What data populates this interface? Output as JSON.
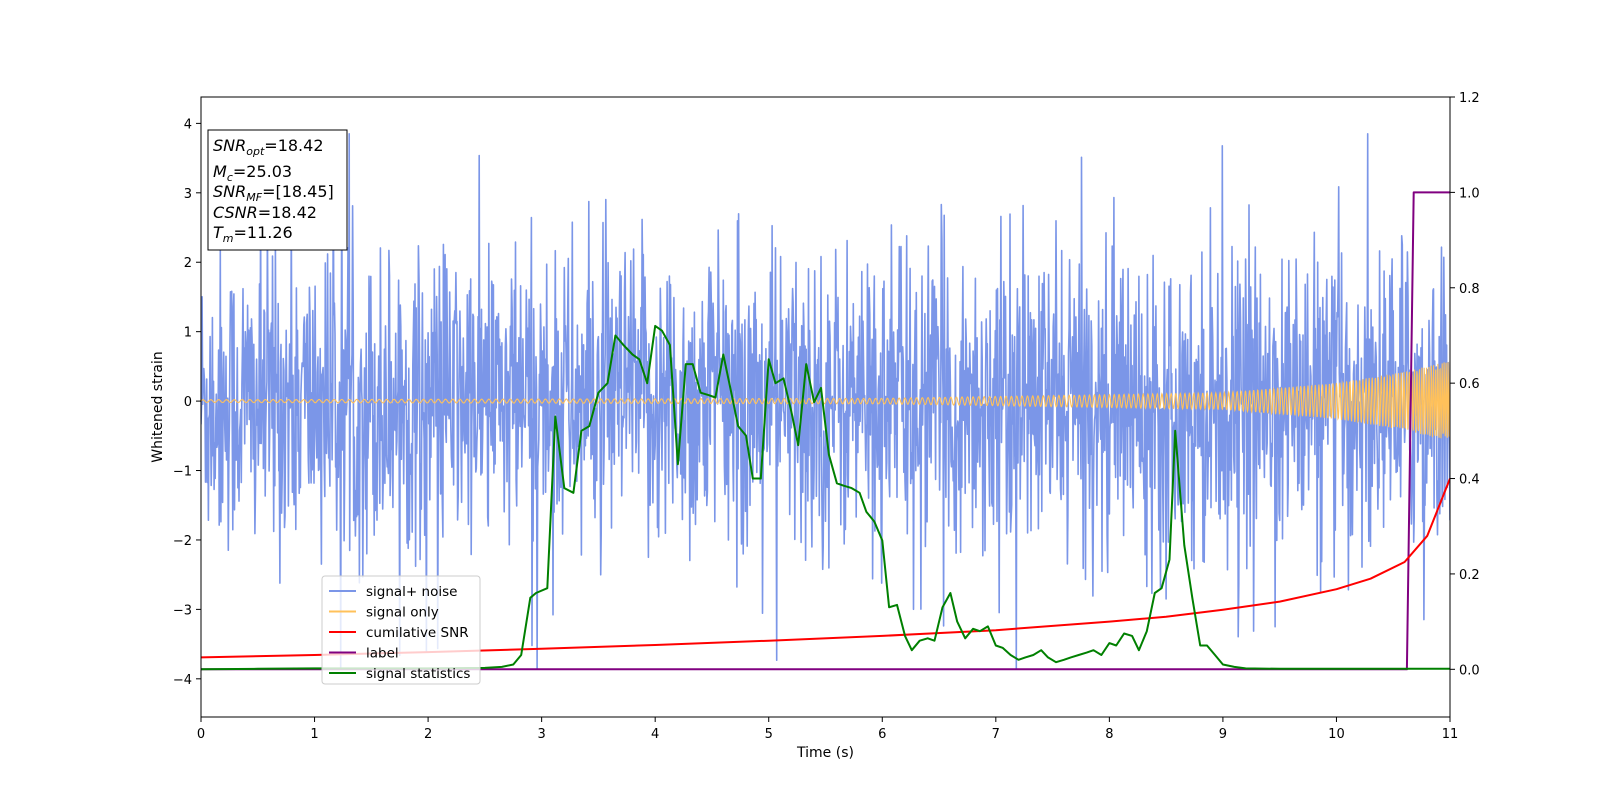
{
  "chart_data": {
    "type": "line",
    "xlabel": "Time (s)",
    "ylabel": "Whitened strain",
    "xlim": [
      0,
      11
    ],
    "ylim": [
      -4.55,
      4.38
    ],
    "y2lim": [
      -0.1,
      1.2
    ],
    "xticks": [
      "0",
      "1",
      "2",
      "3",
      "4",
      "5",
      "6",
      "7",
      "8",
      "9",
      "10",
      "11"
    ],
    "yticks": [
      "−4",
      "−3",
      "−2",
      "−1",
      "0",
      "1",
      "2",
      "3",
      "4"
    ],
    "y2ticks": [
      "0.0",
      "0.2",
      "0.4",
      "0.6",
      "0.8",
      "1.0",
      "1.2"
    ],
    "legend_position": "lower-left",
    "annotation": {
      "lines": [
        {
          "sym": "SNR",
          "sub": "opt",
          "val": "=18.42"
        },
        {
          "sym": "M",
          "sub": "c",
          "val": "=25.03"
        },
        {
          "sym": "SNR",
          "sub": "MF",
          "val": "=[18.45]"
        },
        {
          "sym": "CSNR",
          "sub": "",
          "val": "=18.42"
        },
        {
          "sym": "T",
          "sub": "m",
          "val": "=11.26"
        }
      ]
    },
    "series": [
      {
        "name": "signal+ noise",
        "axis": "left",
        "color": "#7b96e8",
        "noise_envelope": {
          "typical_abs": 1.5,
          "peak_abs": 3.85,
          "points": 2200
        }
      },
      {
        "name": "signal only",
        "axis": "left",
        "color": "#ffc15a",
        "amplitude": [
          [
            0,
            0.02
          ],
          [
            6,
            0.04
          ],
          [
            9,
            0.12
          ],
          [
            10,
            0.26
          ],
          [
            10.6,
            0.42
          ],
          [
            11,
            0.58
          ]
        ]
      },
      {
        "name": "cumilative SNR",
        "axis": "right",
        "color": "#ff0000",
        "x": [
          0,
          1,
          2,
          3,
          4,
          5,
          6,
          7,
          8,
          8.5,
          9,
          9.5,
          10,
          10.3,
          10.6,
          10.8,
          11
        ],
        "y": [
          0.025,
          0.03,
          0.036,
          0.043,
          0.051,
          0.06,
          0.07,
          0.082,
          0.1,
          0.11,
          0.125,
          0.142,
          0.168,
          0.19,
          0.225,
          0.28,
          0.4
        ]
      },
      {
        "name": "label",
        "axis": "right",
        "color": "#800080",
        "x": [
          0,
          10.62,
          10.68,
          11
        ],
        "y": [
          0,
          0,
          1,
          1
        ]
      },
      {
        "name": "signal statistics",
        "axis": "right",
        "color": "#008000",
        "x": [
          0,
          0.5,
          1,
          1.5,
          2,
          2.5,
          2.65,
          2.75,
          2.82,
          2.9,
          2.95,
          3.05,
          3.12,
          3.2,
          3.28,
          3.35,
          3.42,
          3.5,
          3.58,
          3.65,
          3.72,
          3.8,
          3.86,
          3.93,
          4,
          4.06,
          4.13,
          4.2,
          4.27,
          4.33,
          4.4,
          4.47,
          4.53,
          4.6,
          4.67,
          4.73,
          4.8,
          4.86,
          4.93,
          5,
          5.06,
          5.13,
          5.2,
          5.26,
          5.33,
          5.4,
          5.46,
          5.53,
          5.6,
          5.66,
          5.73,
          5.8,
          5.86,
          5.93,
          6,
          6.06,
          6.13,
          6.2,
          6.26,
          6.33,
          6.4,
          6.46,
          6.53,
          6.6,
          6.66,
          6.73,
          6.8,
          6.86,
          6.93,
          7,
          7.06,
          7.13,
          7.2,
          7.26,
          7.33,
          7.4,
          7.46,
          7.53,
          7.6,
          7.66,
          7.73,
          7.8,
          7.86,
          7.93,
          8,
          8.06,
          8.13,
          8.2,
          8.26,
          8.33,
          8.4,
          8.46,
          8.53,
          8.58,
          8.66,
          8.73,
          8.8,
          8.86,
          8.93,
          9,
          9.1,
          9.2,
          9.5,
          10,
          10.5,
          11
        ],
        "y": [
          0,
          0.001,
          0.002,
          0.002,
          0.002,
          0.003,
          0.005,
          0.01,
          0.03,
          0.15,
          0.16,
          0.17,
          0.53,
          0.38,
          0.37,
          0.5,
          0.51,
          0.58,
          0.6,
          0.7,
          0.68,
          0.66,
          0.65,
          0.6,
          0.72,
          0.71,
          0.68,
          0.43,
          0.64,
          0.64,
          0.58,
          0.575,
          0.57,
          0.66,
          0.58,
          0.51,
          0.49,
          0.4,
          0.4,
          0.65,
          0.6,
          0.61,
          0.54,
          0.47,
          0.64,
          0.56,
          0.59,
          0.45,
          0.39,
          0.385,
          0.38,
          0.37,
          0.33,
          0.31,
          0.27,
          0.13,
          0.135,
          0.07,
          0.04,
          0.06,
          0.065,
          0.06,
          0.13,
          0.16,
          0.1,
          0.065,
          0.085,
          0.08,
          0.09,
          0.05,
          0.045,
          0.03,
          0.02,
          0.025,
          0.03,
          0.04,
          0.025,
          0.015,
          0.02,
          0.025,
          0.03,
          0.035,
          0.04,
          0.03,
          0.055,
          0.05,
          0.075,
          0.07,
          0.04,
          0.08,
          0.16,
          0.17,
          0.23,
          0.5,
          0.26,
          0.15,
          0.05,
          0.05,
          0.03,
          0.01,
          0.005,
          0.002,
          0.001,
          0.001,
          0.001,
          0.001
        ]
      }
    ]
  }
}
